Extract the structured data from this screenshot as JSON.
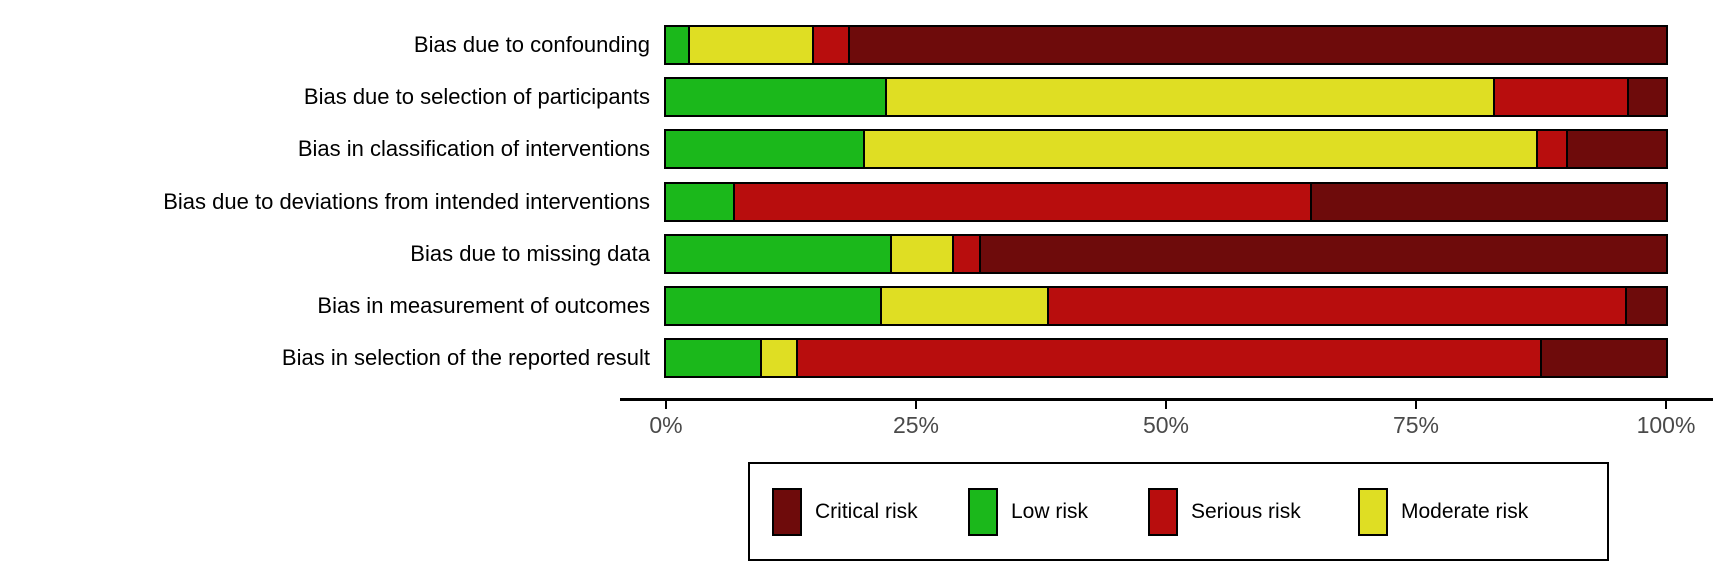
{
  "chart_data": {
    "type": "bar",
    "orientation": "horizontal",
    "stacked": true,
    "unit": "percent",
    "title": "",
    "xlabel": "",
    "ylabel": "",
    "xlim": [
      0,
      100
    ],
    "grid": false,
    "x_tick_labels": [
      "0%",
      "25%",
      "50%",
      "75%",
      "100%"
    ],
    "x_tick_values": [
      0,
      25,
      50,
      75,
      100
    ],
    "categories": [
      "Bias due to confounding",
      "Bias due to selection of participants",
      "Bias in classification of interventions",
      "Bias due to deviations from intended interventions",
      "Bias due to missing data",
      "Bias in measurement of outcomes",
      "Bias in selection of the reported result"
    ],
    "series": [
      {
        "name": "Low risk",
        "color": "#1bb81b",
        "values": [
          2.4,
          22.1,
          19.9,
          6.9,
          22.6,
          21.6,
          9.6
        ]
      },
      {
        "name": "Moderate risk",
        "color": "#dfde23",
        "values": [
          12.4,
          60.8,
          67.3,
          0,
          6.2,
          16.7,
          3.6
        ]
      },
      {
        "name": "Serious risk",
        "color": "#b80d0d",
        "values": [
          3.6,
          13.4,
          3.0,
          57.7,
          2.7,
          57.8,
          74.4
        ]
      },
      {
        "name": "Critical risk",
        "color": "#6e0b0b",
        "values": [
          81.6,
          3.7,
          9.8,
          35.4,
          68.5,
          3.9,
          12.4
        ]
      }
    ],
    "legend_position": "bottom",
    "legend_order": [
      "Critical risk",
      "Low risk",
      "Serious risk",
      "Moderate risk"
    ]
  },
  "legend": {
    "items": [
      {
        "label": "Critical risk",
        "color": "#6e0b0b"
      },
      {
        "label": "Low risk",
        "color": "#1bb81b"
      },
      {
        "label": "Serious risk",
        "color": "#b80d0d"
      },
      {
        "label": "Moderate risk",
        "color": "#dfde23"
      }
    ]
  },
  "colors": {
    "bar_border": "#000000",
    "axis_line": "#000000",
    "tick_label": "#4a4a4a",
    "category_label": "#000000",
    "background": "#ffffff"
  }
}
